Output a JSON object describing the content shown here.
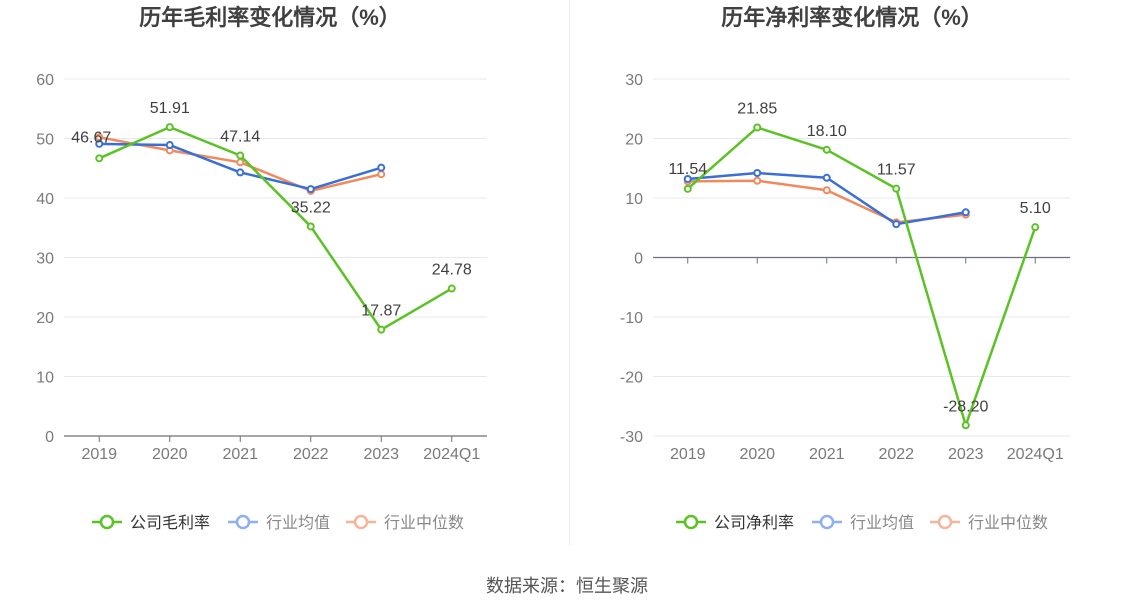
{
  "source_label": "数据来源：恒生聚源",
  "chart_data": [
    {
      "type": "line",
      "title": "历年毛利率变化情况（%）",
      "categories": [
        "2019",
        "2020",
        "2021",
        "2022",
        "2023",
        "2024Q1"
      ],
      "ylim": [
        0,
        60
      ],
      "yticks": [
        0,
        10,
        20,
        30,
        40,
        50,
        60
      ],
      "ytick_labels": [
        "0",
        "10",
        "20",
        "30",
        "40",
        "50",
        "60"
      ],
      "grid": true,
      "legend_position": "bottom",
      "series": [
        {
          "name": "公司毛利率",
          "color": "#5ac323",
          "values": [
            46.67,
            51.91,
            47.14,
            35.22,
            17.87,
            24.78
          ],
          "labels": [
            "46.67",
            "51.91",
            "47.14",
            "35.22",
            "17.87",
            "24.78"
          ]
        },
        {
          "name": "行业均值",
          "color": "#3a6fd8",
          "values": [
            49.1,
            48.9,
            44.3,
            41.5,
            45.1,
            null
          ]
        },
        {
          "name": "行业中位数",
          "color": "#f08a5d",
          "values": [
            50.2,
            48.0,
            46.0,
            41.2,
            44.0,
            null
          ]
        }
      ]
    },
    {
      "type": "line",
      "title": "历年净利率变化情况（%）",
      "categories": [
        "2019",
        "2020",
        "2021",
        "2022",
        "2023",
        "2024Q1"
      ],
      "ylim": [
        -30,
        30
      ],
      "yticks": [
        -30,
        -20,
        -10,
        0,
        10,
        20,
        30
      ],
      "ytick_labels": [
        "-30",
        "-20",
        "-10",
        "0",
        "10",
        "20",
        "30"
      ],
      "grid": true,
      "legend_position": "bottom",
      "series": [
        {
          "name": "公司净利率",
          "color": "#5ac323",
          "values": [
            11.54,
            21.85,
            18.1,
            11.57,
            -28.2,
            5.1
          ],
          "labels": [
            "11.54",
            "21.85",
            "18.10",
            "11.57",
            "-28.20",
            "5.10"
          ]
        },
        {
          "name": "行业均值",
          "color": "#3a6fd8",
          "values": [
            13.2,
            14.2,
            13.4,
            5.6,
            7.6,
            null
          ]
        },
        {
          "name": "行业中位数",
          "color": "#f08a5d",
          "values": [
            12.8,
            12.9,
            11.3,
            5.9,
            7.2,
            null
          ]
        }
      ]
    }
  ]
}
